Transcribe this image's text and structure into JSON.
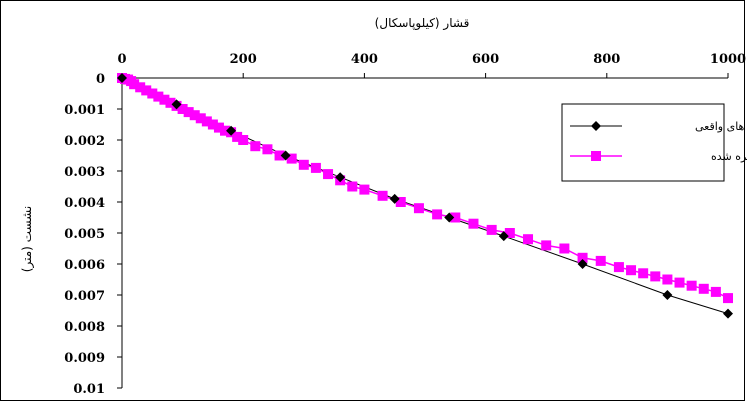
{
  "chart_data": {
    "type": "line",
    "xlabel": "قشار (کیلوپاسکال)",
    "ylabel": "نشست (متر)",
    "xlim": [
      0,
      1000
    ],
    "ylim": [
      0,
      0.01
    ],
    "y_reversed": true,
    "x_ticks": [
      "0",
      "200",
      "400",
      "600",
      "800",
      "1000"
    ],
    "y_ticks": [
      "0",
      "0.001",
      "0.002",
      "0.003",
      "0.004",
      "0.005",
      "0.006",
      "0.007",
      "0.008",
      "0.009",
      "0.01"
    ],
    "legend_position": "right",
    "grid": false,
    "series": [
      {
        "name": "داده های واقعی",
        "color": "#000000",
        "marker": "diamond",
        "x": [
          0,
          90,
          180,
          270,
          360,
          450,
          540,
          630,
          760,
          900,
          1000
        ],
        "y": [
          0,
          0.00085,
          0.0017,
          0.0025,
          0.0032,
          0.0039,
          0.0045,
          0.0051,
          0.006,
          0.007,
          0.0076
        ]
      },
      {
        "name": "داده های کالیبره شده",
        "color": "#ff00ff",
        "marker": "square",
        "x": [
          0,
          5,
          10,
          15,
          20,
          30,
          40,
          50,
          60,
          70,
          80,
          90,
          100,
          110,
          120,
          130,
          140,
          150,
          160,
          170,
          180,
          190,
          200,
          220,
          240,
          260,
          280,
          300,
          320,
          340,
          360,
          380,
          400,
          430,
          460,
          490,
          520,
          550,
          580,
          610,
          640,
          670,
          700,
          730,
          760,
          790,
          820,
          840,
          860,
          880,
          900,
          920,
          940,
          960,
          980,
          1000
        ],
        "y": [
          0,
          3e-05,
          5e-05,
          0.0001,
          0.0002,
          0.0003,
          0.0004,
          0.0005,
          0.0006,
          0.0007,
          0.0008,
          0.0009,
          0.001,
          0.0011,
          0.0012,
          0.0013,
          0.0014,
          0.0015,
          0.0016,
          0.0017,
          0.00175,
          0.0019,
          0.002,
          0.0022,
          0.0023,
          0.0025,
          0.0026,
          0.0028,
          0.0029,
          0.0031,
          0.0033,
          0.0035,
          0.0036,
          0.0038,
          0.004,
          0.0042,
          0.0044,
          0.0045,
          0.0047,
          0.0049,
          0.005,
          0.0052,
          0.0054,
          0.0055,
          0.0058,
          0.0059,
          0.0061,
          0.0062,
          0.0063,
          0.0064,
          0.0065,
          0.0066,
          0.0067,
          0.0068,
          0.0069,
          0.0071
        ]
      }
    ]
  }
}
